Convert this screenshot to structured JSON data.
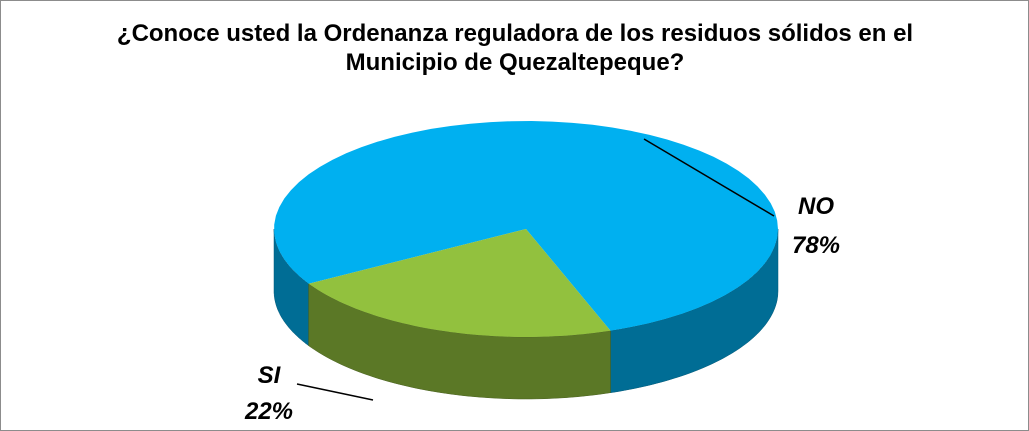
{
  "chart_data": {
    "type": "pie",
    "title": "¿Conoce usted la Ordenanza reguladora de los residuos sólidos en el Municipio de Quezaltepeque?",
    "categories": [
      "NO",
      "SI"
    ],
    "values": [
      78,
      22
    ],
    "value_labels": [
      "78%",
      "22%"
    ],
    "colors": [
      "#00b0f0",
      "#92c13e"
    ]
  }
}
